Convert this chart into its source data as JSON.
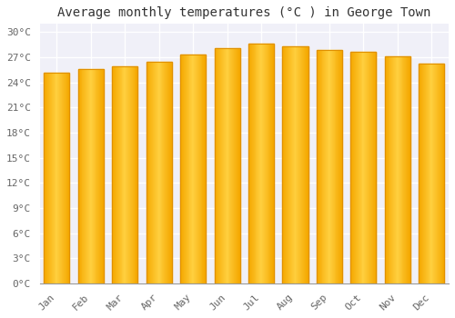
{
  "title": "Average monthly temperatures (°C ) in George Town",
  "months": [
    "Jan",
    "Feb",
    "Mar",
    "Apr",
    "May",
    "Jun",
    "Jul",
    "Aug",
    "Sep",
    "Oct",
    "Nov",
    "Dec"
  ],
  "values": [
    25.2,
    25.6,
    25.9,
    26.5,
    27.3,
    28.1,
    28.6,
    28.3,
    27.9,
    27.7,
    27.1,
    26.3
  ],
  "bar_color_left": "#F5A800",
  "bar_color_center": "#FFD000",
  "bar_color_right": "#F5A800",
  "bar_edge_color": "#E09000",
  "ylim": [
    0,
    31
  ],
  "ytick_step": 3,
  "plot_bg_color": "#F0F0F8",
  "fig_bg_color": "#FFFFFF",
  "grid_color": "#FFFFFF",
  "title_fontsize": 10,
  "tick_fontsize": 8,
  "font_family": "monospace"
}
